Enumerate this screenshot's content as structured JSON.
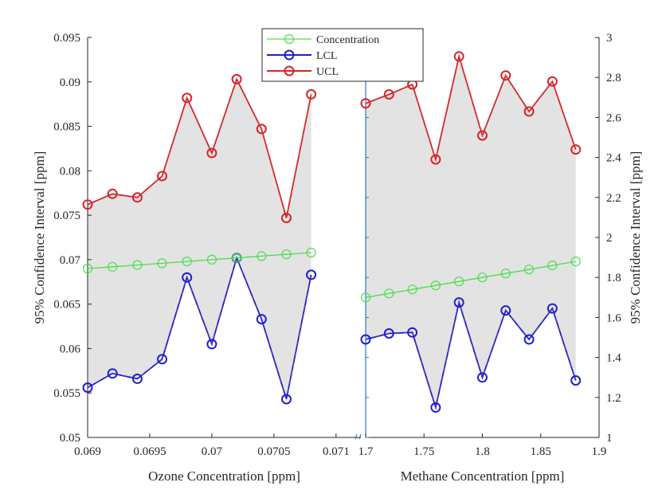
{
  "chart_data": {
    "type": "line",
    "legend": [
      {
        "name": "Concentration",
        "color": "#4ddd4d"
      },
      {
        "name": "LCL",
        "color": "#1f1fcf"
      },
      {
        "name": "UCL",
        "color": "#d9232a"
      }
    ],
    "left_panel": {
      "xlabel": "Ozone Concentration [ppm]",
      "ylabel": "95% Confidence Interval [ppm]",
      "xlim": [
        0.069,
        0.0712
      ],
      "ylim": [
        0.05,
        0.095
      ],
      "xticks": [
        "0.069",
        "0.0695",
        "0.07",
        "0.0705",
        "0.071"
      ],
      "xtick_values": [
        0.069,
        0.0695,
        0.07,
        0.0705,
        0.071
      ],
      "yticks": [
        "0.05",
        "0.055",
        "0.06",
        "0.065",
        "0.07",
        "0.075",
        "0.08",
        "0.085",
        "0.09",
        "0.095"
      ],
      "ytick_values": [
        0.05,
        0.055,
        0.06,
        0.065,
        0.07,
        0.075,
        0.08,
        0.085,
        0.09,
        0.095
      ],
      "x": [
        0.069,
        0.0692,
        0.0694,
        0.0696,
        0.0698,
        0.07,
        0.0702,
        0.0704,
        0.0706,
        0.0708
      ],
      "series": [
        {
          "name": "Concentration",
          "values": [
            0.069,
            0.0692,
            0.0694,
            0.0696,
            0.0698,
            0.07,
            0.0702,
            0.0704,
            0.0706,
            0.0708
          ]
        },
        {
          "name": "LCL",
          "values": [
            0.0556,
            0.0572,
            0.0566,
            0.0588,
            0.068,
            0.0605,
            0.0702,
            0.0633,
            0.0543,
            0.0683
          ]
        },
        {
          "name": "UCL",
          "values": [
            0.0762,
            0.0774,
            0.077,
            0.0794,
            0.0882,
            0.082,
            0.0903,
            0.0847,
            0.0747,
            0.0886
          ]
        }
      ]
    },
    "right_panel": {
      "xlabel": "Methane Concentration [ppm]",
      "ylabel": "95% Confidence Interval [ppm]",
      "xlim": [
        1.7,
        1.9
      ],
      "ylim": [
        1.0,
        3.0
      ],
      "xticks": [
        "1.7",
        "1.75",
        "1.8",
        "1.85",
        "1.9"
      ],
      "xtick_values": [
        1.7,
        1.75,
        1.8,
        1.85,
        1.9
      ],
      "yticks": [
        "1",
        "1.2",
        "1.4",
        "1.6",
        "1.8",
        "2",
        "2.2",
        "2.4",
        "2.6",
        "2.8",
        "3"
      ],
      "ytick_values": [
        1.0,
        1.2,
        1.4,
        1.6,
        1.8,
        2.0,
        2.2,
        2.4,
        2.6,
        2.8,
        3.0
      ],
      "x": [
        1.7,
        1.72,
        1.74,
        1.76,
        1.78,
        1.8,
        1.82,
        1.84,
        1.86,
        1.88
      ],
      "series": [
        {
          "name": "Concentration",
          "values": [
            1.7,
            1.72,
            1.74,
            1.76,
            1.78,
            1.8,
            1.82,
            1.84,
            1.86,
            1.88
          ]
        },
        {
          "name": "LCL",
          "values": [
            1.49,
            1.52,
            1.525,
            1.15,
            1.675,
            1.3,
            1.635,
            1.49,
            1.645,
            1.285
          ]
        },
        {
          "name": "UCL",
          "values": [
            2.67,
            2.715,
            2.765,
            2.39,
            2.905,
            2.51,
            2.81,
            2.63,
            2.78,
            2.44
          ]
        }
      ]
    }
  }
}
